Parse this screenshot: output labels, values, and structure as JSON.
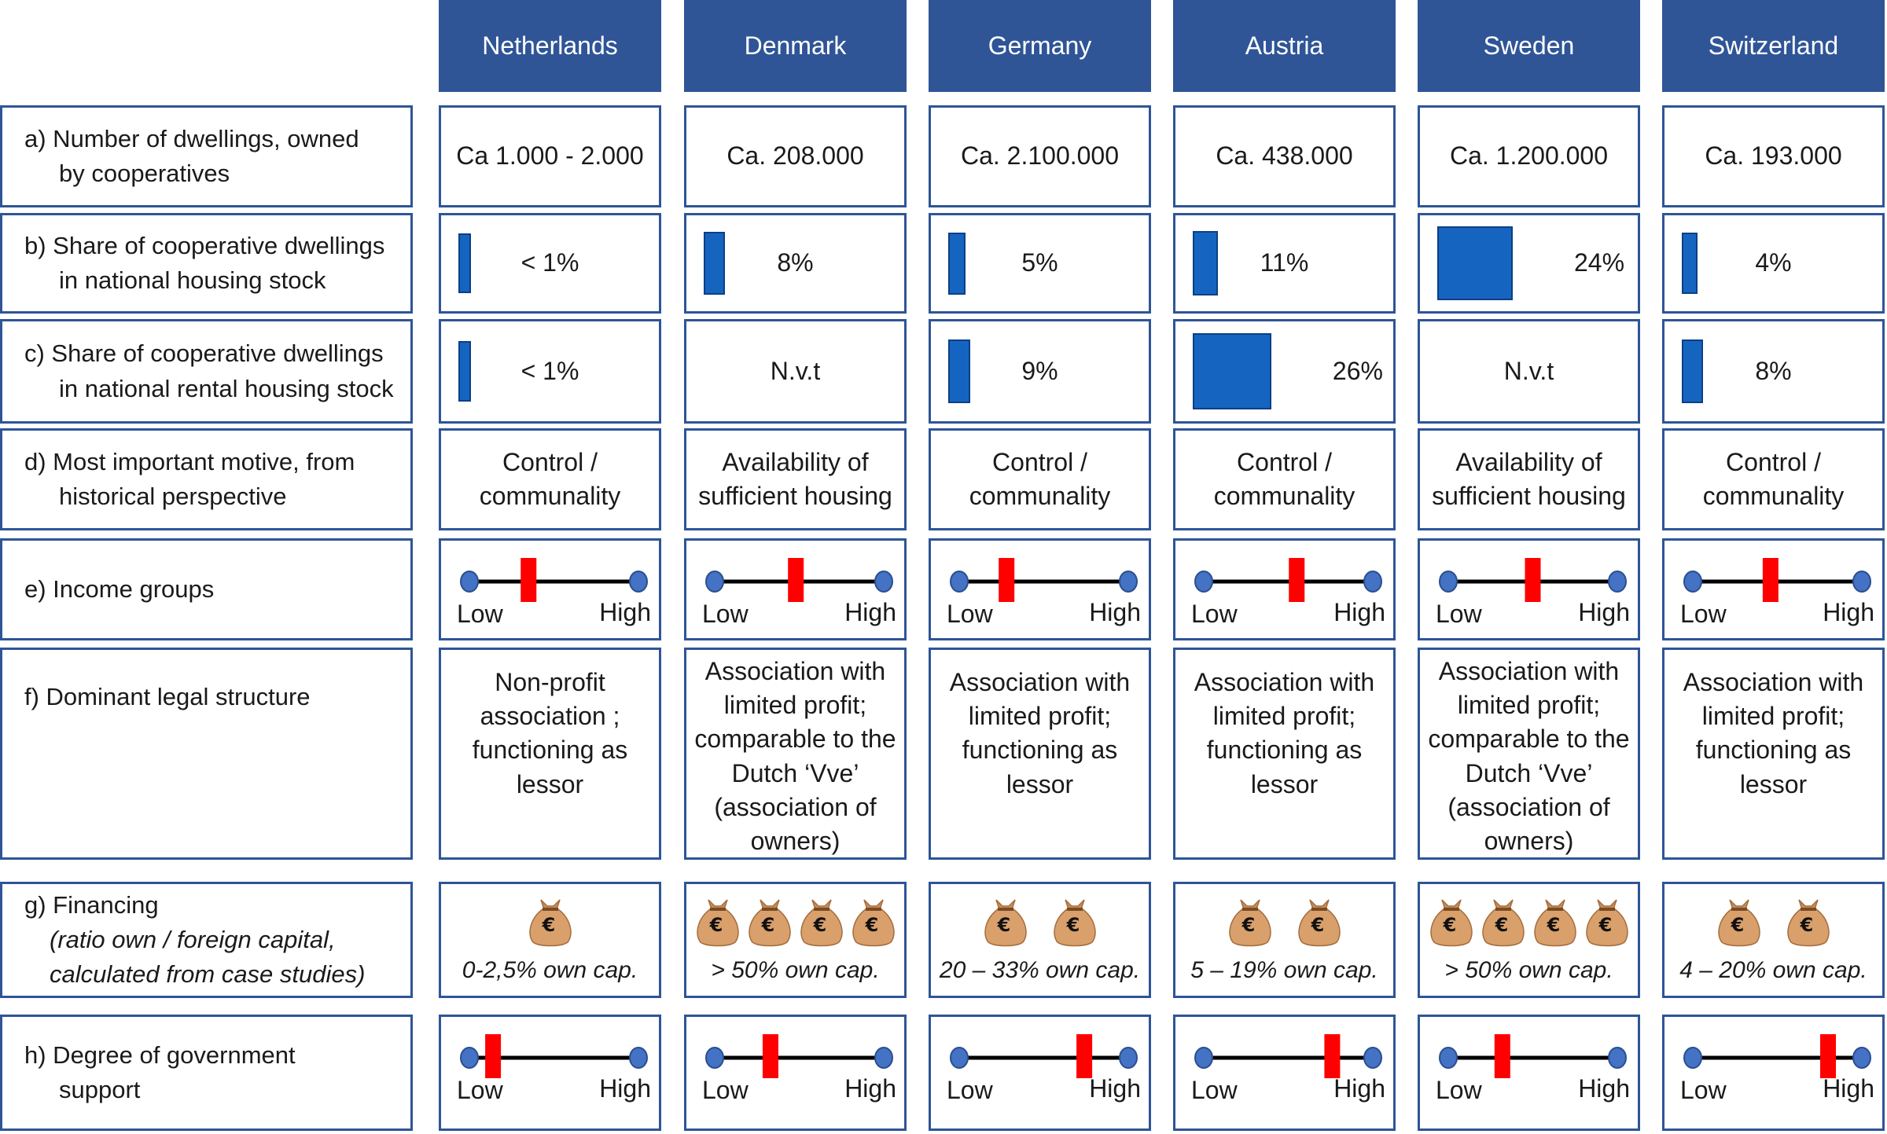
{
  "countries": [
    "Netherlands",
    "Denmark",
    "Germany",
    "Austria",
    "Sweden",
    "Switzerland"
  ],
  "rows": {
    "a": {
      "label_line1": "a) Number of dwellings, owned",
      "label_line2": "by cooperatives",
      "values": [
        "Ca 1.000 - 2.000",
        "Ca. 208.000",
        "Ca. 2.100.000",
        "Ca. 438.000",
        "Ca. 1.200.000",
        "Ca. 193.000"
      ]
    },
    "b": {
      "label_line1": "b) Share of cooperative dwellings",
      "label_line2": "in national housing stock",
      "values": [
        "< 1%",
        "8%",
        "5%",
        "11%",
        "24%",
        "4%"
      ]
    },
    "c": {
      "label_line1": "c) Share of cooperative dwellings",
      "label_line2": "in national rental housing stock",
      "values": [
        "< 1%",
        "N.v.t",
        "9%",
        "26%",
        "N.v.t",
        "8%"
      ]
    },
    "d": {
      "label_line1": "d) Most important motive, from",
      "label_line2": "historical perspective",
      "values": [
        [
          "Control /",
          "communality"
        ],
        [
          "Availability of",
          "sufficient housing"
        ],
        [
          "Control /",
          "communality"
        ],
        [
          "Control /",
          "communality"
        ],
        [
          "Availability of",
          "sufficient housing"
        ],
        [
          "Control /",
          "communality"
        ]
      ]
    },
    "e": {
      "label_line1": "e) Income groups",
      "low": "Low",
      "high": "High",
      "positions": [
        0.35,
        0.48,
        0.28,
        0.55,
        0.5,
        0.46
      ]
    },
    "f": {
      "label_line1": "f) Dominant legal structure",
      "values": [
        [
          "Non-profit",
          "association ;",
          "functioning as",
          "lessor"
        ],
        [
          "Association with",
          "limited profit;",
          "comparable to the",
          "Dutch ‘Vve’",
          "(association of",
          "owners)"
        ],
        [
          "Association with",
          "limited profit;",
          "functioning as",
          "lessor"
        ],
        [
          "Association with",
          "limited profit;",
          "functioning as",
          "lessor"
        ],
        [
          "Association with",
          "limited profit;",
          "comparable to the",
          "Dutch ‘Vve’",
          "(association of",
          "owners)"
        ],
        [
          "Association with",
          "limited profit;",
          "functioning as",
          "lessor"
        ]
      ]
    },
    "g": {
      "label_line1": "g) Financing",
      "label_line2": "(ratio own / foreign capital,",
      "label_line3": "calculated from case studies)",
      "bags": [
        1,
        4,
        2,
        2,
        4,
        2
      ],
      "bag_symbol": "€",
      "values": [
        "0-2,5% own cap.",
        "> 50% own cap.",
        "20 – 33% own cap.",
        "5 – 19% own cap.",
        "> 50% own cap.",
        "4 – 20% own cap."
      ]
    },
    "h": {
      "label_line1": "h) Degree of government",
      "label_line2": "support",
      "low": "Low",
      "high": "High",
      "positions": [
        0.14,
        0.33,
        0.74,
        0.76,
        0.32,
        0.8
      ]
    }
  },
  "share_b": [
    1,
    8,
    5,
    11,
    24,
    4
  ],
  "share_c": [
    1,
    null,
    9,
    26,
    null,
    8
  ],
  "colors": {
    "header": "#2F5597",
    "border": "#2E5597",
    "bar": "#1565C0",
    "marker": "#FF0000",
    "dot": "#4472C4"
  }
}
